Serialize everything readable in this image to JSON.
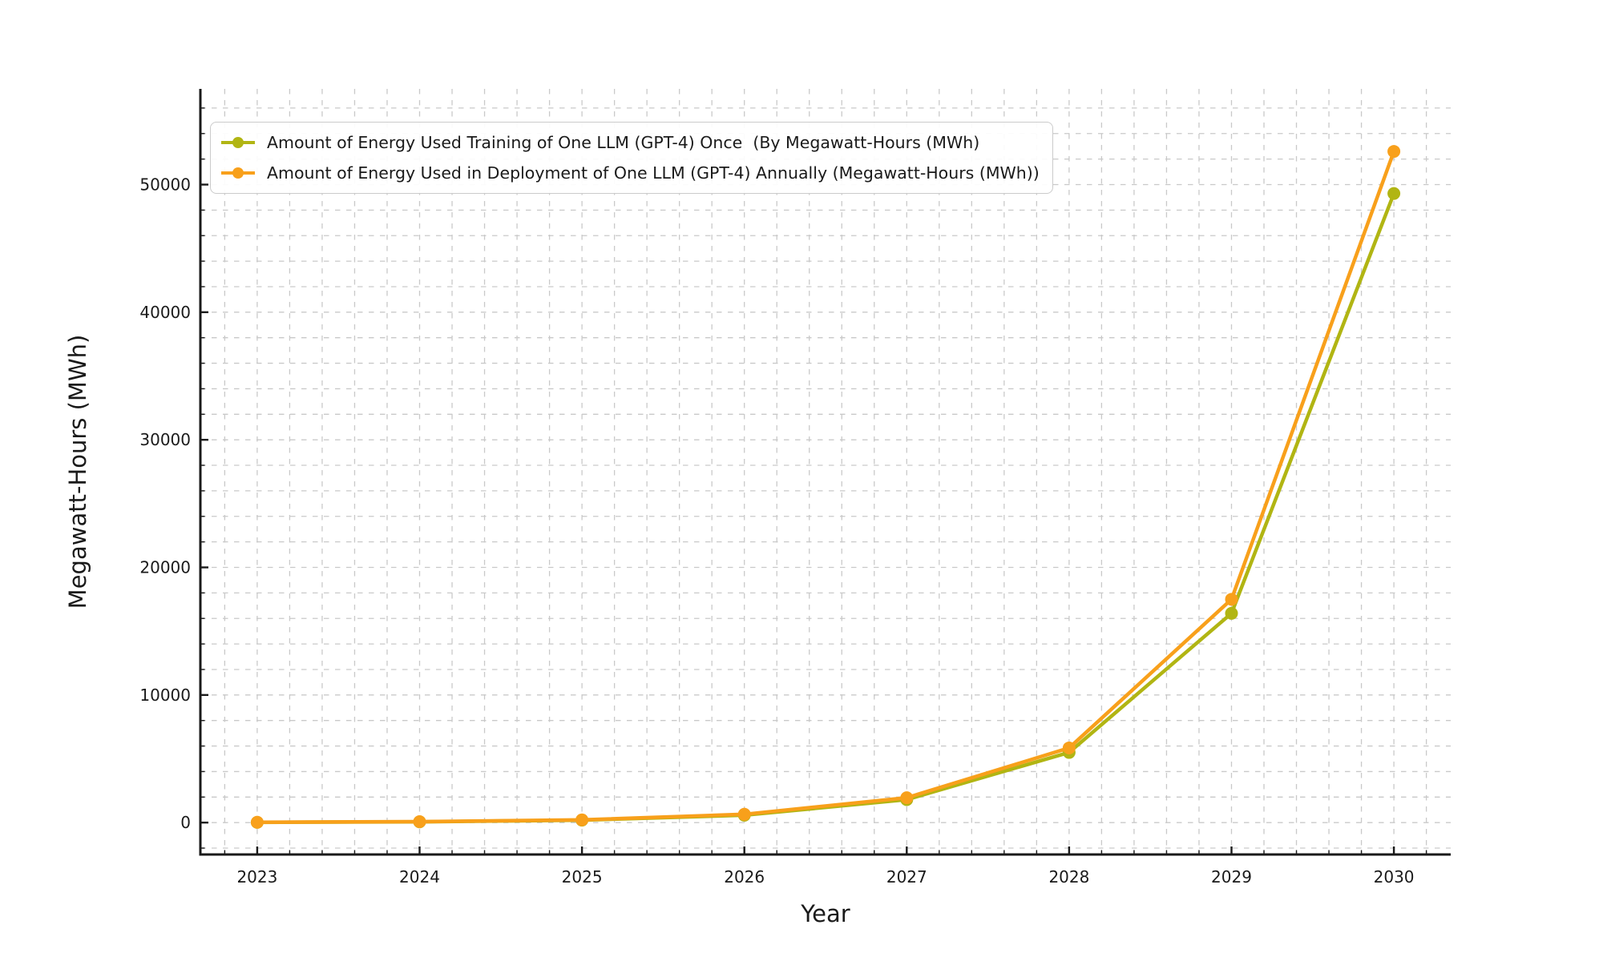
{
  "chart_data": {
    "type": "line",
    "title": "",
    "xlabel": "Year",
    "ylabel": "Megawatt-Hours (MWh)",
    "x": [
      2023,
      2024,
      2025,
      2026,
      2027,
      2028,
      2029,
      2030
    ],
    "x_ticks": [
      "2023",
      "2024",
      "2025",
      "2026",
      "2027",
      "2028",
      "2029",
      "2030"
    ],
    "y_ticks": [
      0,
      10000,
      20000,
      30000,
      40000,
      50000
    ],
    "xlim": [
      2022.65,
      2030.35
    ],
    "ylim": [
      -2500,
      57500
    ],
    "series": [
      {
        "id": "training",
        "name": "Amount of Energy Used Training of One LLM (GPT-4) Once  (By Megawatt-Hours (MWh)",
        "color": "#b1b513",
        "values": [
          20,
          60,
          190,
          580,
          1800,
          5500,
          16400,
          49300
        ]
      },
      {
        "id": "deployment",
        "name": "Amount of Energy Used in Deployment of One LLM (GPT-4) Annually (Megawatt-Hours (MWh))",
        "color": "#f8a01b",
        "values": [
          25,
          75,
          215,
          650,
          1950,
          5850,
          17500,
          52600
        ]
      }
    ],
    "grid": {
      "show": true,
      "which": "both",
      "style": "dashed",
      "color": "#c9c9c9",
      "x_minor_step": 0.2,
      "y_minor_step": 2000
    },
    "legend": {
      "position": "upper-left",
      "border_color": "#cbcbcb",
      "background": "#ffffff"
    },
    "axis_color": "#1a1a1a",
    "marker": "circle",
    "line_width": 4.5,
    "marker_radius": 8
  }
}
